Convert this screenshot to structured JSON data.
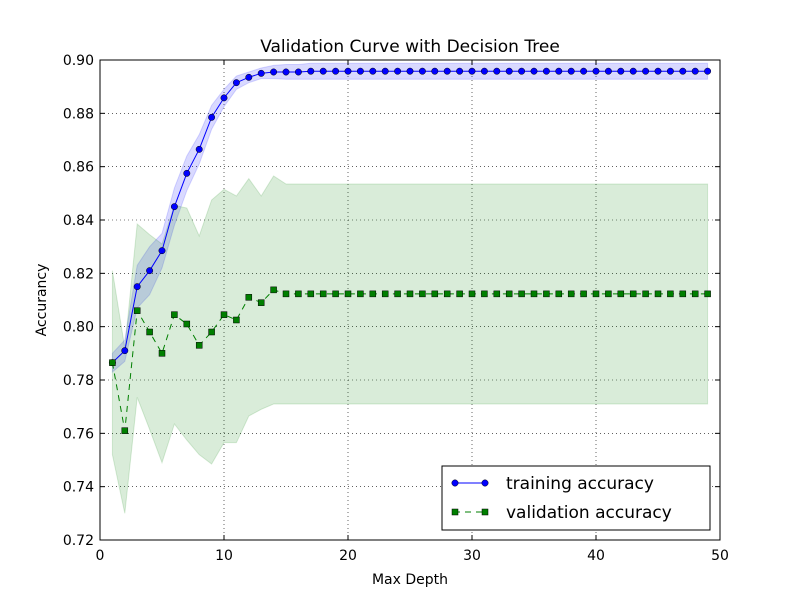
{
  "chart_data": {
    "type": "line",
    "title": "Validation Curve with Decision Tree",
    "xlabel": "Max Depth",
    "ylabel": "Accurancy",
    "xlim": [
      0,
      50
    ],
    "ylim": [
      0.72,
      0.9
    ],
    "xticks": [
      0,
      10,
      20,
      30,
      40,
      50
    ],
    "yticks": [
      0.72,
      0.74,
      0.76,
      0.78,
      0.8,
      0.82,
      0.84,
      0.86,
      0.88,
      0.9
    ],
    "grid": true,
    "legend_position": "lower-right",
    "x": [
      1,
      2,
      3,
      4,
      5,
      6,
      7,
      8,
      9,
      10,
      11,
      12,
      13,
      14,
      15,
      16,
      17,
      18,
      19,
      20,
      21,
      22,
      23,
      24,
      25,
      26,
      27,
      28,
      29,
      30,
      31,
      32,
      33,
      34,
      35,
      36,
      37,
      38,
      39,
      40,
      41,
      42,
      43,
      44,
      45,
      46,
      47,
      48,
      49
    ],
    "series": [
      {
        "name": "training accuracy",
        "color": "#0000ff",
        "band_color": "#0000ff",
        "marker": "circle",
        "line_style": "solid",
        "values": [
          0.7865,
          0.791,
          0.815,
          0.821,
          0.8285,
          0.845,
          0.8575,
          0.8665,
          0.8785,
          0.8858,
          0.8915,
          0.8935,
          0.895,
          0.8955,
          0.8955,
          0.8955,
          0.8958,
          0.8958,
          0.8958,
          0.8958,
          0.8958,
          0.8958,
          0.8958,
          0.8958,
          0.8958,
          0.8958,
          0.8958,
          0.8958,
          0.8958,
          0.8958,
          0.8958,
          0.8958,
          0.8958,
          0.8958,
          0.8958,
          0.8958,
          0.8958,
          0.8958,
          0.8958,
          0.8958,
          0.8958,
          0.8958,
          0.8958,
          0.8958,
          0.8958,
          0.8958,
          0.8958,
          0.8958,
          0.8958
        ],
        "upper": [
          0.79,
          0.795,
          0.823,
          0.83,
          0.835,
          0.852,
          0.864,
          0.872,
          0.883,
          0.889,
          0.894,
          0.8955,
          0.897,
          0.898,
          0.8983,
          0.8983,
          0.8988,
          0.8988,
          0.8988,
          0.8988,
          0.8988,
          0.8988,
          0.8988,
          0.8988,
          0.8988,
          0.8988,
          0.8988,
          0.8988,
          0.8988,
          0.8988,
          0.8988,
          0.8988,
          0.8988,
          0.8988,
          0.8988,
          0.8988,
          0.8988,
          0.8988,
          0.8988,
          0.8988,
          0.8988,
          0.8988,
          0.8988,
          0.8988,
          0.8988,
          0.8988,
          0.8988,
          0.8988,
          0.8988
        ],
        "lower": [
          0.783,
          0.787,
          0.807,
          0.812,
          0.822,
          0.838,
          0.851,
          0.861,
          0.874,
          0.8825,
          0.889,
          0.8915,
          0.893,
          0.893,
          0.8928,
          0.8928,
          0.8928,
          0.8928,
          0.8928,
          0.8928,
          0.8928,
          0.8928,
          0.8928,
          0.8928,
          0.8928,
          0.8928,
          0.8928,
          0.8928,
          0.8928,
          0.8928,
          0.8928,
          0.8928,
          0.8928,
          0.8928,
          0.8928,
          0.8928,
          0.8928,
          0.8928,
          0.8928,
          0.8928,
          0.8928,
          0.8928,
          0.8928,
          0.8928,
          0.8928,
          0.8928,
          0.8928,
          0.8928,
          0.8928
        ]
      },
      {
        "name": "validation accuracy",
        "color": "#007f00",
        "band_color": "#008000",
        "marker": "square",
        "line_style": "dashed",
        "values": [
          0.7865,
          0.761,
          0.806,
          0.798,
          0.79,
          0.8045,
          0.801,
          0.793,
          0.798,
          0.8045,
          0.8025,
          0.811,
          0.809,
          0.8138,
          0.8123,
          0.8123,
          0.8123,
          0.8123,
          0.8123,
          0.8123,
          0.8123,
          0.8123,
          0.8123,
          0.8123,
          0.8123,
          0.8123,
          0.8123,
          0.8123,
          0.8123,
          0.8123,
          0.8123,
          0.8123,
          0.8123,
          0.8123,
          0.8123,
          0.8123,
          0.8123,
          0.8123,
          0.8123,
          0.8123,
          0.8123,
          0.8123,
          0.8123,
          0.8123,
          0.8123,
          0.8123,
          0.8123,
          0.8123,
          0.8123
        ],
        "upper": [
          0.821,
          0.792,
          0.8385,
          0.8345,
          0.831,
          0.8455,
          0.8445,
          0.834,
          0.8475,
          0.8515,
          0.849,
          0.8555,
          0.849,
          0.8565,
          0.8535,
          0.8535,
          0.8535,
          0.8535,
          0.8535,
          0.8535,
          0.8535,
          0.8535,
          0.8535,
          0.8535,
          0.8535,
          0.8535,
          0.8535,
          0.8535,
          0.8535,
          0.8535,
          0.8535,
          0.8535,
          0.8535,
          0.8535,
          0.8535,
          0.8535,
          0.8535,
          0.8535,
          0.8535,
          0.8535,
          0.8535,
          0.8535,
          0.8535,
          0.8535,
          0.8535,
          0.8535,
          0.8535,
          0.8535,
          0.8535
        ],
        "lower": [
          0.752,
          0.73,
          0.7735,
          0.7615,
          0.749,
          0.7635,
          0.7575,
          0.752,
          0.7485,
          0.7565,
          0.7565,
          0.7665,
          0.769,
          0.771,
          0.771,
          0.771,
          0.771,
          0.771,
          0.771,
          0.771,
          0.771,
          0.771,
          0.771,
          0.771,
          0.771,
          0.771,
          0.771,
          0.771,
          0.771,
          0.771,
          0.771,
          0.771,
          0.771,
          0.771,
          0.771,
          0.771,
          0.771,
          0.771,
          0.771,
          0.771,
          0.771,
          0.771,
          0.771,
          0.771,
          0.771,
          0.771,
          0.771,
          0.771,
          0.771
        ]
      }
    ]
  }
}
